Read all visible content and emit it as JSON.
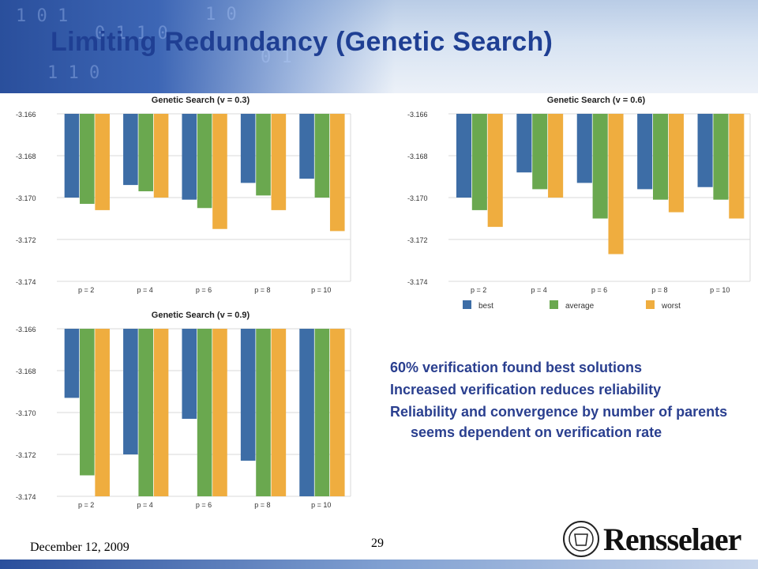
{
  "slide": {
    "title": "Limiting Redundancy (Genetic Search)",
    "date": "December 12, 2009",
    "page": "29",
    "logo_text": "Rensselaer",
    "bullets": [
      "60% verification found best solutions",
      "Increased verification reduces reliability",
      "Reliability and convergence by number of parents seems dependent on verification rate"
    ]
  },
  "legend": {
    "best": "best",
    "average": "average",
    "worst": "worst"
  },
  "colors": {
    "best": "#3d6da6",
    "average": "#6aa84f",
    "worst": "#efad3f",
    "title": "#1f3f93"
  },
  "chart_data": [
    {
      "type": "bar",
      "title": "Genetic Search (v = 0.3)",
      "categories": [
        "p = 2",
        "p = 4",
        "p = 6",
        "p = 8",
        "p = 10"
      ],
      "yticks": [
        "-3.166",
        "-3.168",
        "-3.170",
        "-3.172",
        "-3.174"
      ],
      "ylim": [
        -3.174,
        -3.166
      ],
      "series": [
        {
          "name": "best",
          "values": [
            -3.17,
            -3.1694,
            -3.1701,
            -3.1693,
            -3.1691
          ]
        },
        {
          "name": "average",
          "values": [
            -3.1703,
            -3.1697,
            -3.1705,
            -3.1699,
            -3.17
          ]
        },
        {
          "name": "worst",
          "values": [
            -3.1706,
            -3.17,
            -3.1715,
            -3.1706,
            -3.1716
          ]
        }
      ],
      "legend": false
    },
    {
      "type": "bar",
      "title": "Genetic Search (v = 0.6)",
      "categories": [
        "p = 2",
        "p = 4",
        "p = 6",
        "p = 8",
        "p = 10"
      ],
      "yticks": [
        "-3.166",
        "-3.168",
        "-3.170",
        "-3.172",
        "-3.174"
      ],
      "ylim": [
        -3.174,
        -3.166
      ],
      "series": [
        {
          "name": "best",
          "values": [
            -3.17,
            -3.1688,
            -3.1693,
            -3.1696,
            -3.1695
          ]
        },
        {
          "name": "average",
          "values": [
            -3.1706,
            -3.1696,
            -3.171,
            -3.1701,
            -3.1701
          ]
        },
        {
          "name": "worst",
          "values": [
            -3.1714,
            -3.17,
            -3.1727,
            -3.1707,
            -3.171
          ]
        }
      ],
      "legend": true
    },
    {
      "type": "bar",
      "title": "Genetic Search (v = 0.9)",
      "categories": [
        "p = 2",
        "p = 4",
        "p = 6",
        "p = 8",
        "p = 10"
      ],
      "yticks": [
        "-3.166",
        "-3.168",
        "-3.170",
        "-3.172",
        "-3.174"
      ],
      "ylim": [
        -3.174,
        -3.166
      ],
      "series": [
        {
          "name": "best",
          "values": [
            -3.1693,
            -3.172,
            -3.1703,
            -3.1723,
            -3.174
          ]
        },
        {
          "name": "average",
          "values": [
            -3.173,
            -3.174,
            -3.174,
            -3.174,
            -3.174
          ]
        },
        {
          "name": "worst",
          "values": [
            -3.174,
            -3.174,
            -3.174,
            -3.174,
            -3.174
          ]
        }
      ],
      "legend": false
    }
  ]
}
